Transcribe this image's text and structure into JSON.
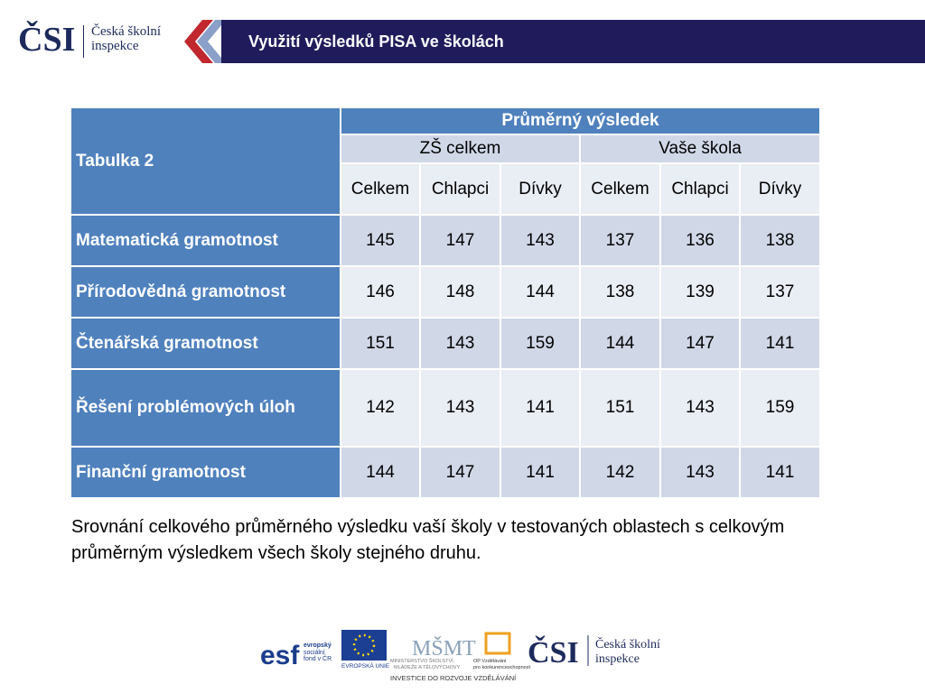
{
  "header": {
    "logo": "ČSI",
    "org": [
      "Česká školní",
      "inspekce"
    ],
    "title": "Využití výsledků PISA ve školách"
  },
  "table": {
    "corner": "Tabulka 2",
    "group": "Průměrný výsledek",
    "subgroups": [
      "ZŠ celkem",
      "Vaše škola"
    ],
    "columns": [
      "Celkem",
      "Chlapci",
      "Dívky",
      "Celkem",
      "Chlapci",
      "Dívky"
    ],
    "rows": [
      {
        "label": "Matematická gramotnost",
        "values": [
          145,
          147,
          143,
          137,
          136,
          138
        ]
      },
      {
        "label": "Přírodovědná gramotnost",
        "values": [
          146,
          148,
          144,
          138,
          139,
          137
        ]
      },
      {
        "label": "Čtenářská gramotnost",
        "values": [
          151,
          143,
          159,
          144,
          147,
          141
        ]
      },
      {
        "label": "Řešení problémových úloh",
        "values": [
          142,
          143,
          141,
          151,
          143,
          159
        ]
      },
      {
        "label": "Finanční gramotnost",
        "values": [
          144,
          147,
          141,
          142,
          143,
          141
        ]
      }
    ]
  },
  "caption": "Srovnání celkového průměrného výsledku vaší školy v testovaných oblastech s celkovým průměrným výsledkem všech školy stejného druhu.",
  "footer": {
    "esf": [
      "evropský",
      "sociální",
      "fond v ČR"
    ],
    "eu": "EVROPSKÁ UNIE",
    "msmt": [
      "MINISTERSTVO ŠKOLSTVÍ,",
      "MLÁDEŽE A TĚLOVÝCHOVY"
    ],
    "op": [
      "OP Vzdělávání",
      "pro konkurenceschopnost"
    ],
    "logo": "ČSI",
    "org": [
      "Česká školní",
      "inspekce"
    ],
    "slogan": "INVESTICE DO ROZVOJE VZDĚLÁVÁNÍ"
  }
}
